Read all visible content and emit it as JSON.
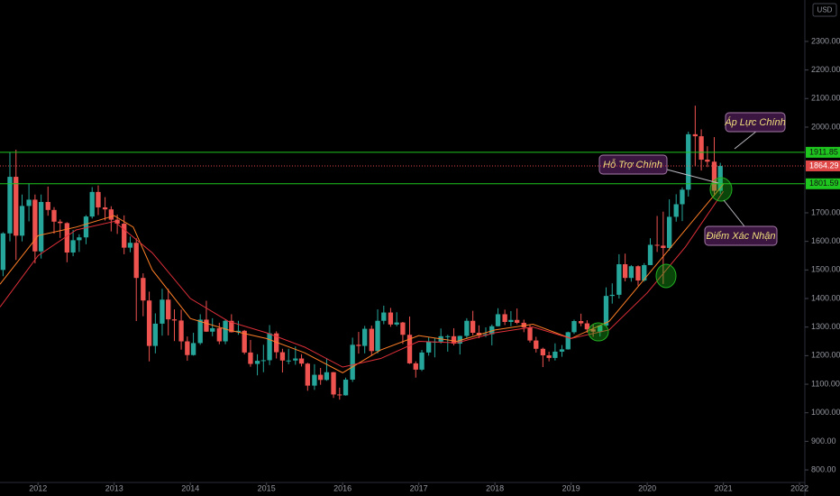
{
  "chart_data": {
    "type": "candlestick",
    "currency": "USD",
    "up_color": "#26a69a",
    "down_color": "#ef5350",
    "xlim": [
      2011.5,
      2022.07
    ],
    "xticks": [
      2012,
      2013,
      2014,
      2015,
      2016,
      2017,
      2018,
      2019,
      2020,
      2021,
      2022
    ],
    "ylim": [
      756,
      2445
    ],
    "yticks": [
      {
        "value": 800,
        "label": "800.00"
      },
      {
        "value": 900,
        "label": "900.00"
      },
      {
        "value": 1000,
        "label": "1000.00"
      },
      {
        "value": 1100,
        "label": "1100.00"
      },
      {
        "value": 1200,
        "label": "1200.00"
      },
      {
        "value": 1300,
        "label": "1300.00"
      },
      {
        "value": 1400,
        "label": "1400.00"
      },
      {
        "value": 1500,
        "label": "1500.00"
      },
      {
        "value": 1600,
        "label": "1600.00"
      },
      {
        "value": 1700,
        "label": "1700.00"
      },
      {
        "value": 2000,
        "label": "2000.00"
      },
      {
        "value": 2100,
        "label": "2100.00"
      },
      {
        "value": 2200,
        "label": "2200.00"
      },
      {
        "value": 2300,
        "label": "2300.00"
      }
    ],
    "x": [
      2011.54,
      2011.63,
      2011.71,
      2011.79,
      2011.88,
      2011.96,
      2012.04,
      2012.13,
      2012.21,
      2012.29,
      2012.38,
      2012.46,
      2012.54,
      2012.63,
      2012.71,
      2012.79,
      2012.88,
      2012.96,
      2013.04,
      2013.13,
      2013.21,
      2013.29,
      2013.38,
      2013.46,
      2013.54,
      2013.63,
      2013.71,
      2013.79,
      2013.88,
      2013.96,
      2014.04,
      2014.13,
      2014.21,
      2014.29,
      2014.38,
      2014.46,
      2014.54,
      2014.63,
      2014.71,
      2014.79,
      2014.88,
      2014.96,
      2015.04,
      2015.13,
      2015.21,
      2015.29,
      2015.38,
      2015.46,
      2015.54,
      2015.63,
      2015.71,
      2015.79,
      2015.88,
      2015.96,
      2016.04,
      2016.13,
      2016.21,
      2016.29,
      2016.38,
      2016.46,
      2016.54,
      2016.63,
      2016.71,
      2016.79,
      2016.88,
      2016.96,
      2017.04,
      2017.13,
      2017.21,
      2017.29,
      2017.38,
      2017.46,
      2017.54,
      2017.63,
      2017.71,
      2017.79,
      2017.88,
      2017.96,
      2018.04,
      2018.13,
      2018.21,
      2018.29,
      2018.38,
      2018.46,
      2018.54,
      2018.63,
      2018.71,
      2018.79,
      2018.88,
      2018.96,
      2019.04,
      2019.13,
      2019.21,
      2019.29,
      2019.38,
      2019.46,
      2019.54,
      2019.63,
      2019.71,
      2019.79,
      2019.88,
      2019.96,
      2020.04,
      2020.13,
      2020.21,
      2020.29,
      2020.38,
      2020.46,
      2020.54,
      2020.63,
      2020.71,
      2020.79,
      2020.88,
      2020.96
    ],
    "open": [
      1500,
      1628,
      1826,
      1620,
      1724,
      1746,
      1565,
      1738,
      1710,
      1669,
      1664,
      1561,
      1604,
      1614,
      1687,
      1773,
      1719,
      1712,
      1676,
      1662,
      1578,
      1595,
      1472,
      1393,
      1234,
      1312,
      1396,
      1327,
      1323,
      1250,
      1202,
      1244,
      1326,
      1284,
      1296,
      1250,
      1322,
      1282,
      1287,
      1211,
      1171,
      1182,
      1184,
      1278,
      1212,
      1183,
      1183,
      1190,
      1172,
      1095,
      1133,
      1115,
      1142,
      1064,
      1061,
      1116,
      1238,
      1234,
      1294,
      1216,
      1322,
      1351,
      1309,
      1316,
      1273,
      1173,
      1151,
      1211,
      1249,
      1249,
      1268,
      1268,
      1242,
      1269,
      1322,
      1280,
      1271,
      1275,
      1303,
      1345,
      1318,
      1325,
      1315,
      1299,
      1253,
      1224,
      1201,
      1192,
      1214,
      1222,
      1282,
      1321,
      1313,
      1292,
      1284,
      1305,
      1409,
      1413,
      1520,
      1472,
      1513,
      1463,
      1517,
      1588,
      1585,
      1577,
      1686,
      1730,
      1781,
      1975,
      1968,
      1886,
      1879,
      1777
    ],
    "high": [
      1632,
      1913,
      1921,
      1764,
      1803,
      1764,
      1764,
      1792,
      1720,
      1677,
      1667,
      1640,
      1625,
      1692,
      1790,
      1796,
      1755,
      1723,
      1694,
      1691,
      1617,
      1611,
      1488,
      1424,
      1348,
      1434,
      1434,
      1362,
      1361,
      1267,
      1280,
      1345,
      1392,
      1331,
      1315,
      1325,
      1345,
      1322,
      1290,
      1255,
      1205,
      1238,
      1307,
      1285,
      1224,
      1224,
      1232,
      1205,
      1175,
      1170,
      1157,
      1191,
      1143,
      1088,
      1123,
      1263,
      1283,
      1304,
      1305,
      1362,
      1375,
      1367,
      1352,
      1318,
      1337,
      1180,
      1220,
      1264,
      1262,
      1295,
      1273,
      1296,
      1270,
      1331,
      1357,
      1306,
      1299,
      1309,
      1366,
      1361,
      1356,
      1365,
      1326,
      1309,
      1266,
      1228,
      1214,
      1243,
      1237,
      1284,
      1326,
      1347,
      1324,
      1310,
      1306,
      1439,
      1453,
      1555,
      1557,
      1517,
      1516,
      1524,
      1611,
      1689,
      1704,
      1747,
      1765,
      1789,
      1984,
      2075,
      1992,
      1933,
      1965,
      1875
    ],
    "low": [
      1478,
      1600,
      1535,
      1600,
      1670,
      1523,
      1540,
      1690,
      1627,
      1612,
      1527,
      1548,
      1563,
      1590,
      1680,
      1692,
      1673,
      1635,
      1626,
      1555,
      1562,
      1321,
      1338,
      1180,
      1208,
      1270,
      1271,
      1251,
      1221,
      1182,
      1200,
      1238,
      1283,
      1268,
      1240,
      1240,
      1281,
      1273,
      1205,
      1161,
      1131,
      1142,
      1167,
      1190,
      1141,
      1170,
      1168,
      1162,
      1077,
      1080,
      1098,
      1112,
      1052,
      1046,
      1060,
      1108,
      1207,
      1208,
      1199,
      1208,
      1310,
      1301,
      1303,
      1241,
      1171,
      1123,
      1146,
      1200,
      1194,
      1242,
      1214,
      1236,
      1204,
      1262,
      1271,
      1261,
      1265,
      1236,
      1302,
      1307,
      1303,
      1310,
      1282,
      1246,
      1211,
      1160,
      1180,
      1183,
      1196,
      1221,
      1276,
      1303,
      1280,
      1266,
      1267,
      1301,
      1382,
      1400,
      1460,
      1459,
      1445,
      1459,
      1517,
      1563,
      1451,
      1568,
      1669,
      1671,
      1757,
      1863,
      1848,
      1860,
      1765,
      1765
    ],
    "close": [
      1628,
      1826,
      1620,
      1724,
      1746,
      1565,
      1738,
      1710,
      1669,
      1664,
      1561,
      1604,
      1614,
      1687,
      1773,
      1719,
      1712,
      1676,
      1662,
      1578,
      1595,
      1472,
      1393,
      1234,
      1312,
      1396,
      1327,
      1323,
      1250,
      1202,
      1244,
      1326,
      1284,
      1296,
      1250,
      1322,
      1282,
      1287,
      1211,
      1171,
      1182,
      1184,
      1278,
      1212,
      1183,
      1183,
      1190,
      1172,
      1095,
      1133,
      1115,
      1142,
      1064,
      1061,
      1116,
      1238,
      1234,
      1294,
      1216,
      1322,
      1351,
      1309,
      1316,
      1273,
      1173,
      1151,
      1211,
      1249,
      1249,
      1268,
      1268,
      1242,
      1269,
      1322,
      1280,
      1271,
      1275,
      1303,
      1345,
      1318,
      1325,
      1315,
      1299,
      1253,
      1224,
      1201,
      1192,
      1214,
      1222,
      1282,
      1321,
      1313,
      1292,
      1284,
      1305,
      1409,
      1413,
      1520,
      1472,
      1513,
      1463,
      1517,
      1588,
      1585,
      1577,
      1686,
      1730,
      1781,
      1975,
      1968,
      1886,
      1879,
      1777,
      1864
    ],
    "moving_averages": [
      {
        "color": "#ff7f27",
        "x": [
          2011.5,
          2012.0,
          2012.5,
          2013.0,
          2013.25,
          2013.5,
          2014.0,
          2014.5,
          2015.0,
          2015.5,
          2016.0,
          2016.5,
          2017.0,
          2017.5,
          2018.0,
          2018.5,
          2019.0,
          2019.5,
          2020.0,
          2020.5,
          2021.0
        ],
        "values": [
          1450,
          1620,
          1650,
          1690,
          1650,
          1500,
          1330,
          1290,
          1260,
          1210,
          1140,
          1220,
          1270,
          1250,
          1290,
          1310,
          1260,
          1320,
          1480,
          1640,
          1800
        ]
      },
      {
        "color": "#e0303a",
        "x": [
          2011.5,
          2012.0,
          2012.5,
          2013.0,
          2013.5,
          2014.0,
          2014.5,
          2015.0,
          2015.5,
          2016.0,
          2016.5,
          2017.0,
          2017.5,
          2018.0,
          2018.5,
          2019.0,
          2019.5,
          2020.0,
          2020.5,
          2021.0
        ],
        "values": [
          1370,
          1550,
          1640,
          1670,
          1560,
          1400,
          1320,
          1280,
          1230,
          1160,
          1190,
          1250,
          1245,
          1280,
          1300,
          1260,
          1290,
          1420,
          1580,
          1775
        ]
      }
    ],
    "levels": [
      {
        "value": 1911.85,
        "color": "#1fc51f",
        "style": "solid"
      },
      {
        "value": 1864.29,
        "color": "#e04848",
        "style": "dotted"
      },
      {
        "value": 1801.59,
        "color": "#1fc51f",
        "style": "solid"
      }
    ],
    "annotations": [
      "Áp Lực Chính",
      "Hỗ Trợ Chính",
      "Điểm Xác Nhận"
    ]
  }
}
